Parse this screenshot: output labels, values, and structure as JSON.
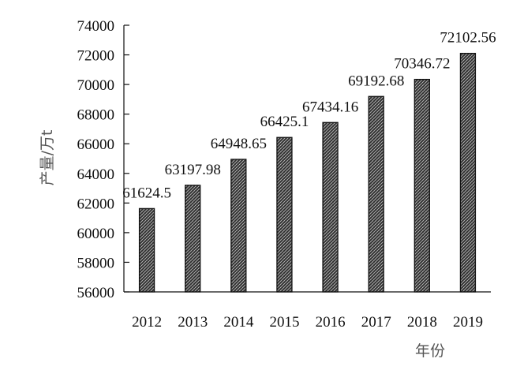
{
  "chart_data": {
    "type": "bar",
    "categories": [
      "2012",
      "2013",
      "2014",
      "2015",
      "2016",
      "2017",
      "2018",
      "2019"
    ],
    "series": [
      {
        "values": [
          61624.5,
          63197.98,
          64948.65,
          66425.1,
          67434.16,
          69192.68,
          70346.72,
          72102.56
        ]
      }
    ],
    "data_labels": [
      "61624.5",
      "63197.98",
      "64948.65",
      "66425.1",
      "67434.16",
      "69192.68",
      "70346.72",
      "72102.56"
    ],
    "ylabel": "产量/万t",
    "xlabel": "年份",
    "ylim": [
      56000,
      74000
    ],
    "yticks": [
      56000,
      58000,
      60000,
      62000,
      64000,
      66000,
      68000,
      70000,
      72000,
      74000
    ],
    "grid": false,
    "bar_fill": "hatched-dark"
  }
}
